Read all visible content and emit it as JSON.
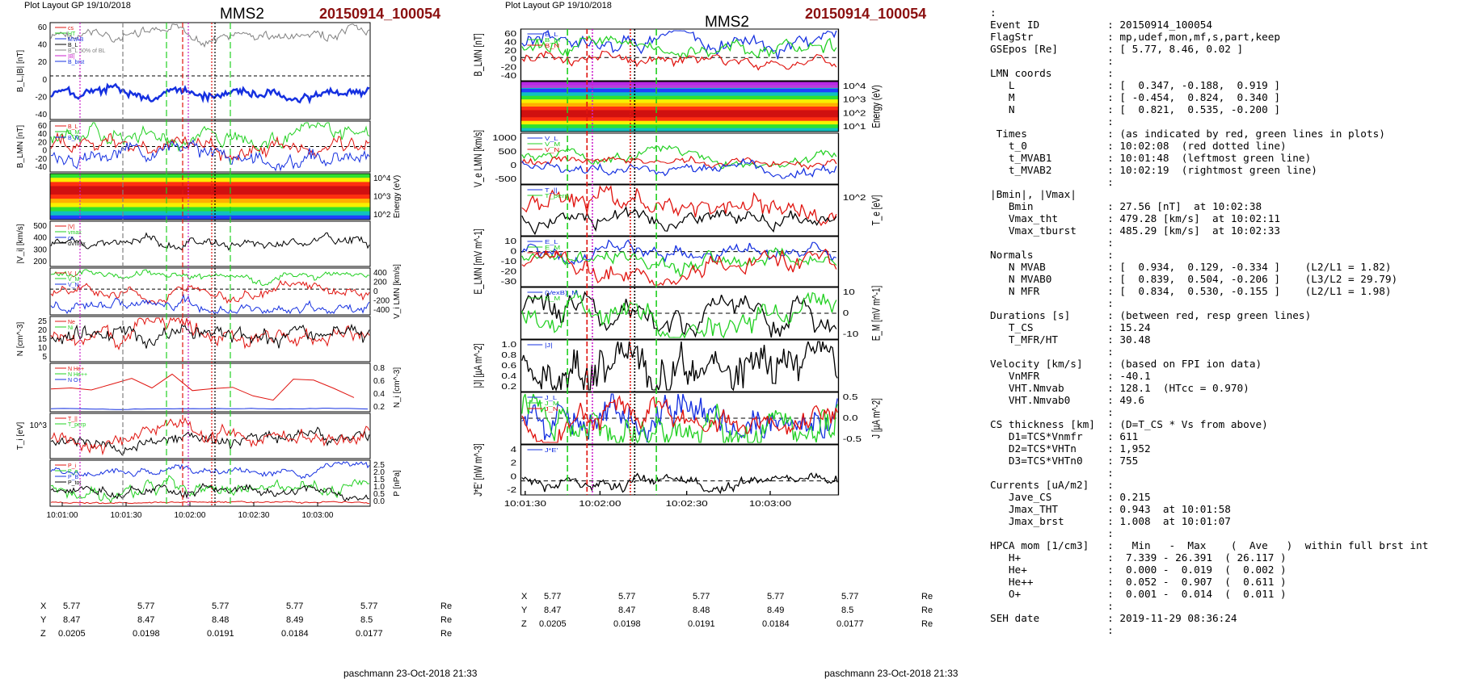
{
  "left_figure": {
    "plot_layout": "Plot Layout GP 19/10/2018",
    "spacecraft": "MMS2",
    "event": "20150914_100054",
    "footer": "paschmann 23-Oct-2018 21:33",
    "time_ticks": [
      "10:01:00",
      "10:01:30",
      "10:02:00",
      "10:02:30",
      "10:03:00"
    ],
    "coords": {
      "X": {
        "label": "X",
        "values": [
          "5.77",
          "5.77",
          "5.77",
          "5.77",
          "5.77"
        ],
        "unit": "Re"
      },
      "Y": {
        "label": "Y",
        "values": [
          "8.47",
          "8.47",
          "8.48",
          "8.49",
          "8.5"
        ],
        "unit": "Re"
      },
      "Z": {
        "label": "Z",
        "values": [
          "0.0205",
          "0.0198",
          "0.0191",
          "0.0184",
          "0.0177"
        ],
        "unit": "Re"
      }
    },
    "panels": [
      {
        "ylabel": "B_L,|B| [nT]",
        "ticks": [
          "60",
          "40",
          "20",
          "0",
          "-20",
          "-40"
        ],
        "legend": [
          "cs",
          "HT",
          "MVAB",
          "B_L",
          "B_L 50% of BL",
          "|B|",
          "B_brst"
        ]
      },
      {
        "ylabel": "B_LMN [nT]",
        "ticks": [
          "60",
          "40",
          "20",
          "0",
          "-20",
          "-40"
        ],
        "legend": [
          "B_L",
          "B_M",
          "B_N"
        ]
      },
      {
        "ylabel": "Energy (eV)",
        "ticks": [
          "10^4",
          "10^3",
          "10^2"
        ],
        "right_axis": true
      },
      {
        "ylabel": "|V_i| [km/s]",
        "ticks": [
          "500",
          "400",
          "300",
          "200"
        ],
        "legend": [
          "|V|",
          "vmax",
          "cs",
          "dVmax"
        ]
      },
      {
        "ylabel": "V_i LMN [km/s]",
        "ticks": [
          "400",
          "200",
          "0",
          "-200",
          "-400"
        ],
        "right_axis": true,
        "legend": [
          "V_L",
          "V_M",
          "V_N"
        ]
      },
      {
        "ylabel": "N [cm^-3]",
        "ticks": [
          "25",
          "20",
          "15",
          "10",
          "5"
        ],
        "legend": [
          "Ne",
          "Ni"
        ]
      },
      {
        "ylabel": "N_i [cm^-3]",
        "ticks": [
          "0.8",
          "0.6",
          "0.4",
          "0.2"
        ],
        "right_axis": true,
        "legend": [
          "N He+",
          "N He++",
          "N O+"
        ]
      },
      {
        "ylabel": "T_i [eV]",
        "ticks": [
          "10^3"
        ],
        "legend": [
          "T_||",
          "T_perp"
        ]
      },
      {
        "ylabel": "P [nPa]",
        "ticks": [
          "2.5",
          "2.0",
          "1.5",
          "1.0",
          "0.5",
          "0.0"
        ],
        "right_axis": true,
        "legend": [
          "P_i",
          "P_e",
          "P_B",
          "P_tot"
        ]
      }
    ]
  },
  "middle_figure": {
    "plot_layout": "Plot Layout GP 19/10/2018",
    "spacecraft": "MMS2",
    "event": "20150914_100054",
    "footer": "paschmann 23-Oct-2018 21:33",
    "time_ticks": [
      "10:01:30",
      "10:02:00",
      "10:02:30",
      "10:03:00"
    ],
    "coords": {
      "X": {
        "label": "X",
        "values": [
          "5.77",
          "5.77",
          "5.77",
          "5.77",
          "5.77"
        ],
        "unit": "Re"
      },
      "Y": {
        "label": "Y",
        "values": [
          "8.47",
          "8.47",
          "8.48",
          "8.49",
          "8.5"
        ],
        "unit": "Re"
      },
      "Z": {
        "label": "Z",
        "values": [
          "0.0205",
          "0.0198",
          "0.0191",
          "0.0184",
          "0.0177"
        ],
        "unit": "Re"
      }
    },
    "panels": [
      {
        "ylabel": "B_LMN [nT]",
        "ticks": [
          "60",
          "40",
          "20",
          "0",
          "-20",
          "-40"
        ],
        "legend": [
          "B_L",
          "B_M",
          "B_N"
        ]
      },
      {
        "ylabel": "Energy (eV)",
        "ticks": [
          "10^4",
          "10^3",
          "10^2",
          "10^1"
        ],
        "right_axis": true
      },
      {
        "ylabel": "V_e LMN [km/s]",
        "ticks": [
          "1000",
          "500",
          "0",
          "-500"
        ],
        "legend": [
          "V_L",
          "V_M",
          "V_N"
        ]
      },
      {
        "ylabel": "T_e [eV]",
        "ticks": [
          "10^2"
        ],
        "right_axis": true,
        "legend": [
          "T_||",
          "T_perp"
        ]
      },
      {
        "ylabel": "E_LMN [mV m^-1]",
        "ticks": [
          "10",
          "0",
          "-10",
          "-20",
          "-30"
        ],
        "legend": [
          "E_L",
          "E_M",
          "E_N"
        ]
      },
      {
        "ylabel": "E_M [mV m^-1]",
        "ticks": [
          "10",
          "0",
          "-10"
        ],
        "right_axis": true,
        "legend": [
          "(VexB)_M",
          "E_M"
        ]
      },
      {
        "ylabel": "|J| [µA m^-2]",
        "ticks": [
          "1.0",
          "0.8",
          "0.6",
          "0.4",
          "0.2"
        ],
        "legend": [
          "|J|"
        ]
      },
      {
        "ylabel": "J [µA m^-2]",
        "ticks": [
          "0.5",
          "0.0",
          "-0.5"
        ],
        "right_axis": true,
        "legend": [
          "J_L",
          "J_M",
          "J_N"
        ]
      },
      {
        "ylabel": "J*E' [nW m^-3]",
        "ticks": [
          "4",
          "2",
          "0",
          "-2"
        ],
        "legend": [
          "J*E'"
        ]
      }
    ]
  },
  "summary": {
    "lines": [
      [
        ":",
        "",
        ""
      ],
      [
        "Event ID",
        ":",
        "20150914_100054"
      ],
      [
        "FlagStr",
        ":",
        "mp,udef,mon,mf,s,part,keep"
      ],
      [
        "GSEpos [Re]",
        ":",
        "[ 5.77, 8.46, 0.02 ]"
      ],
      [
        "",
        ":",
        ""
      ],
      [
        "LMN coords",
        ":",
        ""
      ],
      [
        "   L",
        ":",
        "[  0.347, -0.188,  0.919 ]"
      ],
      [
        "   M",
        ":",
        "[ -0.454,  0.824,  0.340 ]"
      ],
      [
        "   N",
        ":",
        "[  0.821,  0.535, -0.200 ]"
      ],
      [
        "",
        ":",
        ""
      ],
      [
        " Times",
        ":",
        "(as indicated by red, green lines in plots)"
      ],
      [
        "   t_0",
        ":",
        "10:02:08  (red dotted line)"
      ],
      [
        "   t_MVAB1",
        ":",
        "10:01:48  (leftmost green line)"
      ],
      [
        "   t_MVAB2",
        ":",
        "10:02:19  (rightmost green line)"
      ],
      [
        "",
        ":",
        ""
      ],
      [
        "|Bmin|, |Vmax|",
        "",
        ""
      ],
      [
        "   Bmin",
        ":",
        "27.56 [nT]  at 10:02:38"
      ],
      [
        "   Vmax_tht",
        ":",
        "479.28 [km/s]  at 10:02:11"
      ],
      [
        "   Vmax_tburst",
        ":",
        "485.29 [km/s]  at 10:02:33"
      ],
      [
        "",
        ":",
        ""
      ],
      [
        "Normals",
        ":",
        ""
      ],
      [
        "   N MVAB",
        ":",
        "[  0.934,  0.129, -0.334 ]    (L2/L1 = 1.82)"
      ],
      [
        "   N MVAB0",
        ":",
        "[  0.839,  0.504, -0.206 ]    (L3/L2 = 29.79)"
      ],
      [
        "   N MFR",
        ":",
        "[  0.834,  0.530, -0.155 ]    (L2/L1 = 1.98)"
      ],
      [
        "",
        ":",
        ""
      ],
      [
        "Durations [s]",
        ":",
        "(between red, resp green lines)"
      ],
      [
        "   T_CS",
        ":",
        "15.24"
      ],
      [
        "   T_MFR/HT",
        ":",
        "30.48"
      ],
      [
        "",
        ":",
        ""
      ],
      [
        "Velocity [km/s]",
        ":",
        "(based on FPI ion data)"
      ],
      [
        "   VnMFR",
        ":",
        "-40.1"
      ],
      [
        "   VHT.Nmvab",
        ":",
        "128.1  (HTcc = 0.970)"
      ],
      [
        "   VHT.Nmvab0",
        ":",
        "49.6"
      ],
      [
        "",
        ":",
        ""
      ],
      [
        "CS thickness [km]",
        ":",
        "(D=T_CS * Vs from above)"
      ],
      [
        "   D1=TCS*Vnmfr",
        ":",
        "611"
      ],
      [
        "   D2=TCS*VHTn",
        ":",
        "1,952"
      ],
      [
        "   D3=TCS*VHTn0",
        ":",
        "755"
      ],
      [
        "",
        ":",
        ""
      ],
      [
        "Currents [uA/m2]",
        ":",
        ""
      ],
      [
        "   Jave_CS",
        ":",
        "0.215"
      ],
      [
        "   Jmax_THT",
        ":",
        "0.943  at 10:01:58"
      ],
      [
        "   Jmax_brst",
        ":",
        "1.008  at 10:01:07"
      ],
      [
        "",
        ":",
        ""
      ],
      [
        "HPCA mom [1/cm3]",
        ":",
        "  Min   -  Max    (  Ave   )  within full brst int"
      ],
      [
        "   H+",
        ":",
        " 7.339 - 26.391  ( 26.117 )"
      ],
      [
        "   He+",
        ":",
        " 0.000 -  0.019  (  0.002 )"
      ],
      [
        "   He++",
        ":",
        " 0.052 -  0.907  (  0.611 )"
      ],
      [
        "   O+",
        ":",
        " 0.001 -  0.014  (  0.011 )"
      ],
      [
        "",
        ":",
        ""
      ],
      [
        "SEH date",
        ":",
        "2019-11-29 08:36:24"
      ],
      [
        "",
        ":",
        ""
      ]
    ]
  },
  "colors": {
    "red": "#e0140f",
    "green": "#22d022",
    "blue": "#1530e0",
    "black": "#000000",
    "grey": "#808080",
    "magenta": "#cc22cc",
    "title": "#8b1010"
  }
}
